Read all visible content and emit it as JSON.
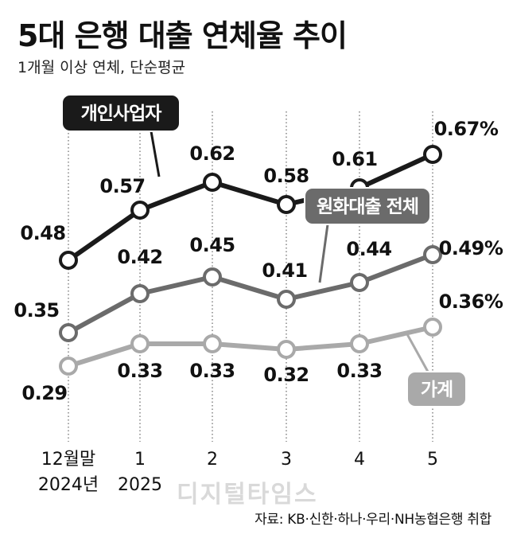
{
  "header": {
    "title": "5대 은행 대출 연체율 추이",
    "subtitle": "1개월 이상 연체, 단순평균"
  },
  "footer": {
    "source": "자료: KB·신한·하나·우리·NH농협은행 취합",
    "watermark": "디지털타임스"
  },
  "chart_data": {
    "type": "line",
    "title": "5대 은행 대출 연체율 추이",
    "subtitle": "1개월 이상 연체, 단순평균",
    "unit": "%",
    "categories": [
      [
        "12월말",
        "2024년"
      ],
      [
        "1",
        "2025"
      ],
      [
        "2"
      ],
      [
        "3"
      ],
      [
        "4"
      ],
      [
        "5"
      ]
    ],
    "ylim": [
      0.2,
      0.7
    ],
    "grid": "vertical-dotted",
    "series": [
      {
        "name": "개인사업자",
        "color": "#1a1a1a",
        "values": [
          0.48,
          0.57,
          0.62,
          0.58,
          0.61,
          0.67
        ],
        "labels": [
          "0.48",
          "0.57",
          "0.62",
          "0.58",
          "0.61",
          "0.67%"
        ]
      },
      {
        "name": "원화대출 전체",
        "color": "#6b6b6b",
        "values": [
          0.35,
          0.42,
          0.45,
          0.41,
          0.44,
          0.49
        ],
        "labels": [
          "0.35",
          "0.42",
          "0.45",
          "0.41",
          "0.44",
          "0.49%"
        ]
      },
      {
        "name": "가계",
        "color": "#a9a9a9",
        "values": [
          0.29,
          0.33,
          0.33,
          0.32,
          0.33,
          0.36
        ],
        "labels": [
          "0.29",
          "0.33",
          "0.33",
          "0.32",
          "0.33",
          "0.36%"
        ]
      }
    ]
  }
}
